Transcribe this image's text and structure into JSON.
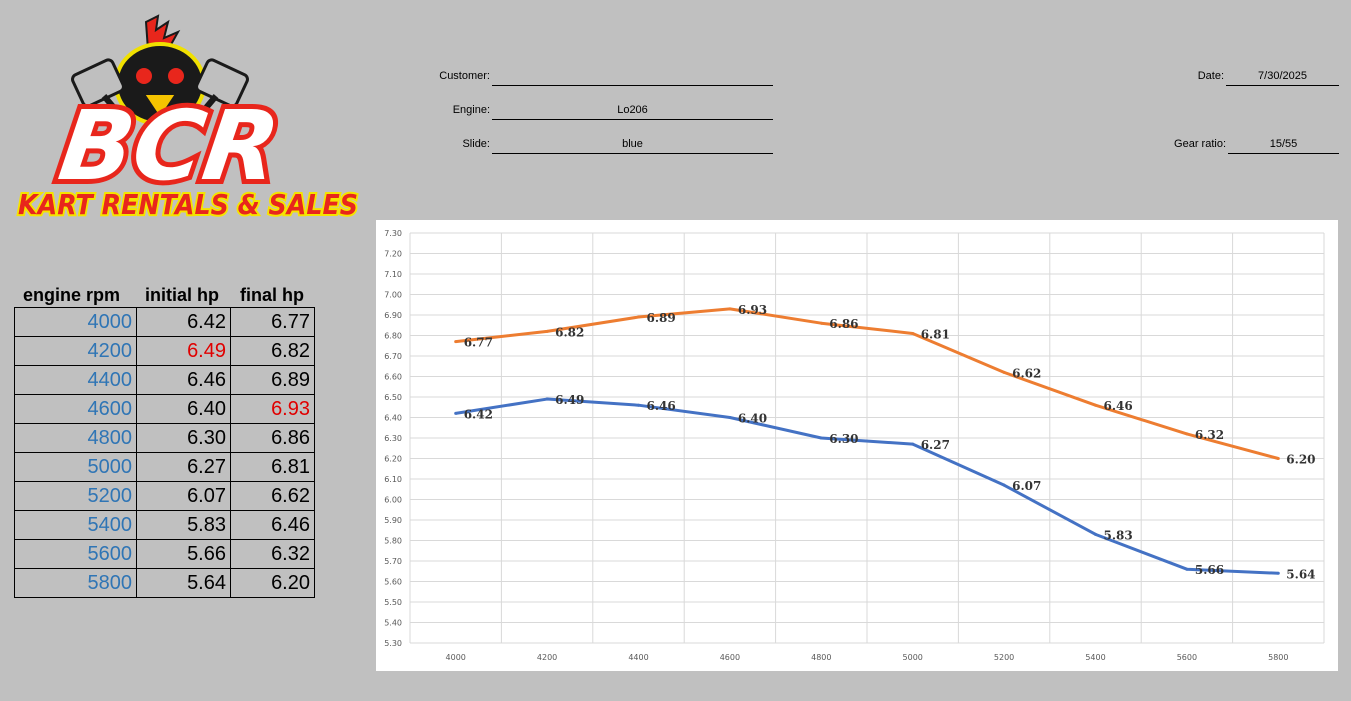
{
  "logo": {
    "main_text": "BCR",
    "sub_text": "KART RENTALS & SALES"
  },
  "form": {
    "customer_label": "Customer:",
    "customer_value": "",
    "engine_label": "Engine:",
    "engine_value": "Lo206",
    "slide_label": "Slide:",
    "slide_value": "blue",
    "date_label": "Date:",
    "date_value": "7/30/2025",
    "gear_ratio_label": "Gear ratio:",
    "gear_ratio_value": "15/55"
  },
  "table": {
    "headers": [
      "engine rpm",
      "initial hp",
      "final hp"
    ],
    "rows": [
      {
        "rpm": "4000",
        "initial": "6.42",
        "final": "6.77",
        "initial_highlight": false,
        "final_highlight": false
      },
      {
        "rpm": "4200",
        "initial": "6.49",
        "final": "6.82",
        "initial_highlight": true,
        "final_highlight": false
      },
      {
        "rpm": "4400",
        "initial": "6.46",
        "final": "6.89",
        "initial_highlight": false,
        "final_highlight": false
      },
      {
        "rpm": "4600",
        "initial": "6.40",
        "final": "6.93",
        "initial_highlight": false,
        "final_highlight": true
      },
      {
        "rpm": "4800",
        "initial": "6.30",
        "final": "6.86",
        "initial_highlight": false,
        "final_highlight": false
      },
      {
        "rpm": "5000",
        "initial": "6.27",
        "final": "6.81",
        "initial_highlight": false,
        "final_highlight": false
      },
      {
        "rpm": "5200",
        "initial": "6.07",
        "final": "6.62",
        "initial_highlight": false,
        "final_highlight": false
      },
      {
        "rpm": "5400",
        "initial": "5.83",
        "final": "6.46",
        "initial_highlight": false,
        "final_highlight": false
      },
      {
        "rpm": "5600",
        "initial": "5.66",
        "final": "6.32",
        "initial_highlight": false,
        "final_highlight": false
      },
      {
        "rpm": "5800",
        "initial": "5.64",
        "final": "6.20",
        "initial_highlight": false,
        "final_highlight": false
      }
    ],
    "rpm_color": "#2f75b5",
    "highlight_color": "#e00000"
  },
  "chart_data": {
    "type": "line",
    "title": "",
    "xlabel": "",
    "ylabel": "",
    "x": [
      4000,
      4200,
      4400,
      4600,
      4800,
      5000,
      5200,
      5400,
      5600,
      5800
    ],
    "ylim": [
      5.3,
      7.3
    ],
    "ytick_step": 0.1,
    "grid": true,
    "legend": "none",
    "series": [
      {
        "color": "#ed7d31",
        "values": [
          6.77,
          6.82,
          6.89,
          6.93,
          6.86,
          6.81,
          6.62,
          6.46,
          6.32,
          6.2
        ]
      },
      {
        "color": "#4472c4",
        "values": [
          6.42,
          6.49,
          6.46,
          6.4,
          6.3,
          6.27,
          6.07,
          5.83,
          5.66,
          5.64
        ]
      }
    ]
  }
}
